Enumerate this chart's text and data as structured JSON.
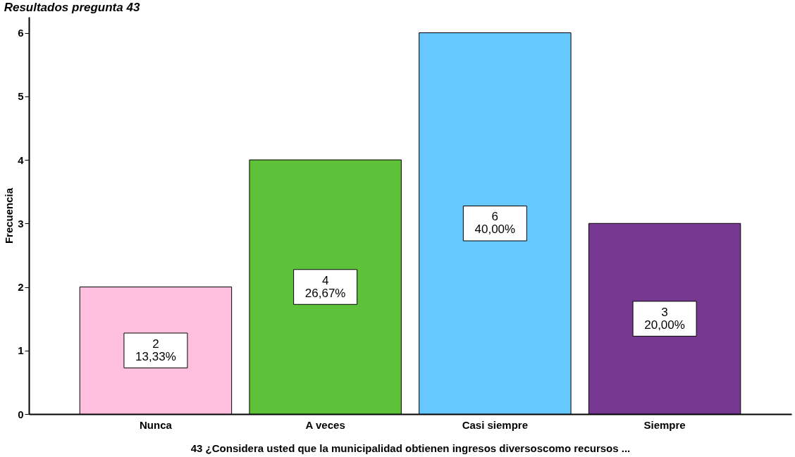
{
  "chart_data": {
    "type": "bar",
    "title": "Resultados pregunta 43",
    "xlabel": "43 ¿Considera usted que la municipalidad obtienen ingresos diversoscomo recursos ...",
    "ylabel": "Frecuencia",
    "categories": [
      "Nunca",
      "A veces",
      "Casi siempre",
      "Siempre"
    ],
    "values": [
      2,
      4,
      6,
      3
    ],
    "colors": [
      "#ffc0e0",
      "#5dc139",
      "#66c8ff",
      "#773892"
    ],
    "value_labels": [
      "2\n13,33%",
      "4\n26,67%",
      "6\n40,00%",
      "3\n20,00%"
    ],
    "ylim": [
      0,
      6.25
    ],
    "yticks": [
      0,
      1,
      2,
      3,
      4,
      5,
      6
    ],
    "grid": false
  }
}
